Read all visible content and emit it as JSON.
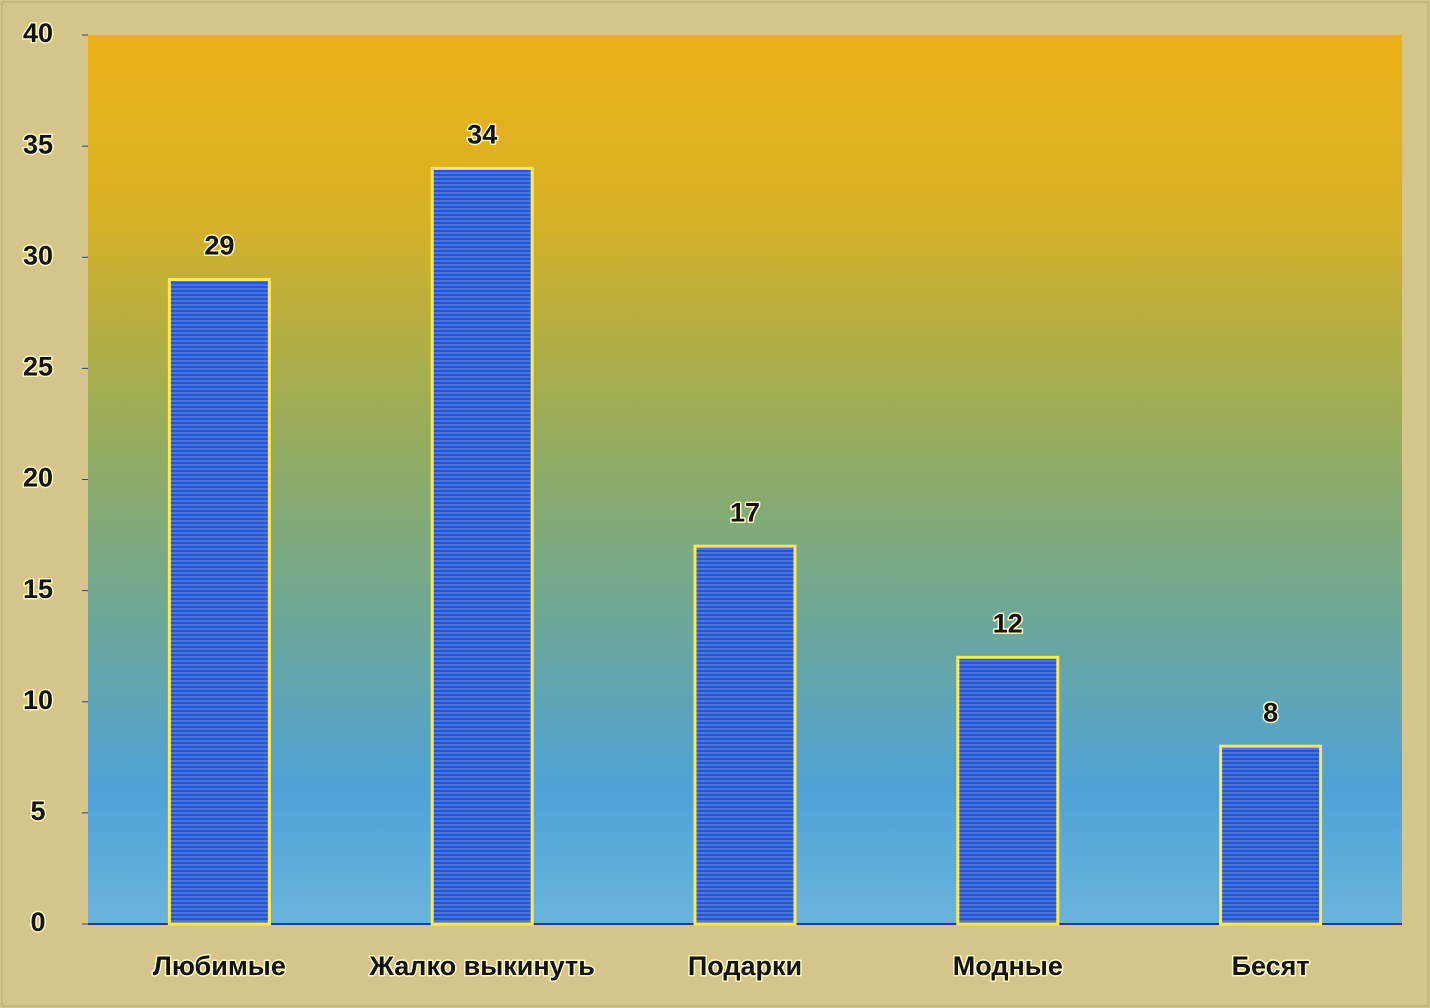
{
  "chart_data": {
    "type": "bar",
    "categories": [
      "Любимые",
      "Жалко выкинуть",
      "Подарки",
      "Модные",
      "Бесят"
    ],
    "values": [
      29,
      34,
      17,
      12,
      8
    ],
    "color": "#2456d8",
    "ylim": [
      0,
      40
    ],
    "yticks": [
      0,
      5,
      10,
      15,
      20,
      25,
      30,
      35,
      40
    ],
    "grid": false
  }
}
